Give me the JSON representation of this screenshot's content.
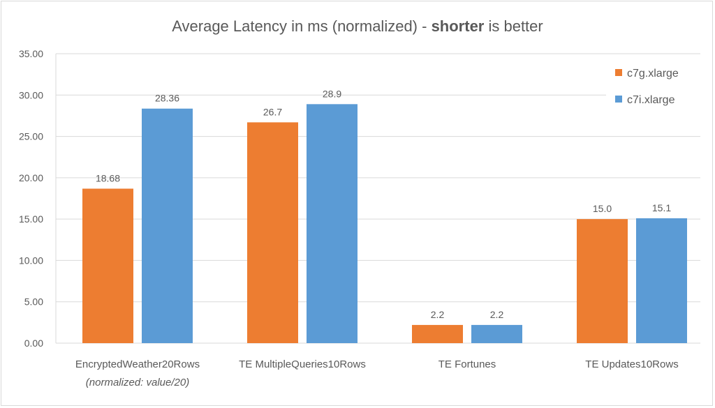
{
  "chart_data": {
    "type": "bar",
    "title_parts": [
      "Average Latency in ms (normalized) - ",
      "shorter",
      " is better"
    ],
    "categories": [
      "EncryptedWeather20Rows",
      "TE MultipleQueries10Rows",
      "TE Fortunes",
      "TE Updates10Rows"
    ],
    "category_note": "(normalized: value/20)",
    "series": [
      {
        "name": "c7g.xlarge",
        "color": "#ED7D31",
        "values": [
          18.68,
          26.7,
          2.2,
          15.0
        ],
        "labels": [
          "18.68",
          "26.7",
          "2.2",
          "15.0"
        ]
      },
      {
        "name": "c7i.xlarge",
        "color": "#5B9BD5",
        "values": [
          28.36,
          28.9,
          2.2,
          15.1
        ],
        "labels": [
          "28.36",
          "28.9",
          "2.2",
          "15.1"
        ]
      }
    ],
    "ylim": [
      0,
      35
    ],
    "yticks": [
      "0.00",
      "5.00",
      "10.00",
      "15.00",
      "20.00",
      "25.00",
      "30.00",
      "35.00"
    ],
    "grid": true,
    "legend": "top-right"
  }
}
